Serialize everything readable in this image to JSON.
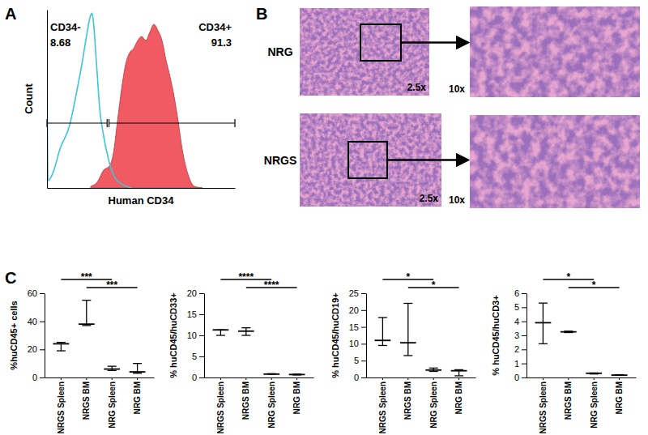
{
  "chart_data": [
    {
      "panel": "A",
      "type": "line",
      "xlabel": "Human CD34",
      "ylabel": "Count",
      "xlim": [
        0,
        100
      ],
      "ylim": [
        0,
        100
      ],
      "tick_labels": false,
      "series": [
        {
          "type": "line",
          "color": "#3ec6d8",
          "x": [
            0,
            0.6,
            3,
            7,
            12,
            16,
            19,
            21,
            23,
            24,
            25,
            26,
            27,
            28,
            30,
            33,
            36,
            40,
            45
          ],
          "values": [
            70,
            4,
            8,
            22,
            35,
            55,
            72,
            85,
            96,
            98,
            90,
            75,
            60,
            45,
            30,
            15,
            6,
            2,
            0
          ]
        },
        {
          "type": "area",
          "color": "#ef5a63",
          "x": [
            23.3,
            26.7,
            30.2,
            33.2,
            35.3,
            37.5,
            39.7,
            41.8,
            44,
            46.1,
            48.3,
            50.4,
            52.6,
            54.7,
            56.9,
            59.1,
            61.2,
            63.4,
            65.5,
            67.7,
            69.8,
            72,
            75,
            78.4,
            82.8
          ],
          "values": [
            0.9,
            3.2,
            10,
            12.3,
            19.1,
            37.3,
            55.5,
            69.1,
            75.9,
            78.2,
            82.7,
            85,
            82.7,
            87.3,
            91.8,
            88.2,
            82.7,
            71.4,
            62.3,
            50.9,
            37.3,
            21.4,
            7.7,
            0.9,
            0
          ]
        }
      ],
      "gates": [
        {
          "name": "CD34-",
          "percent": 8.68,
          "x": [
            0,
            32
          ]
        },
        {
          "name": "CD34+",
          "percent": 91.3,
          "x": [
            33,
            100
          ]
        }
      ]
    },
    {
      "panel": "C",
      "type": "range",
      "ylabel": "%huCD45+ cells",
      "categories": [
        "NRGS Spleen",
        "NRGS BM",
        "NRG Spleen",
        "NRG BM"
      ],
      "min": [
        19,
        37,
        5,
        3
      ],
      "median": [
        24,
        38,
        6,
        4
      ],
      "max": [
        25,
        55,
        8,
        10
      ],
      "ylim": [
        0,
        60
      ],
      "yticks": [
        0,
        20,
        40,
        60
      ],
      "significance": [
        {
          "pair": [
            "NRGS Spleen",
            "NRG Spleen"
          ],
          "label": "***"
        },
        {
          "pair": [
            "NRGS BM",
            "NRG BM"
          ],
          "label": "***"
        }
      ]
    },
    {
      "type": "range",
      "ylabel": "% huCD45/huCD33+",
      "categories": [
        "NRGS Spleen",
        "NRGS BM",
        "NRG Spleen",
        "NRG BM"
      ],
      "min": [
        10,
        10,
        0.8,
        0.6
      ],
      "median": [
        11.3,
        11,
        0.8,
        0.7
      ],
      "max": [
        11.3,
        11.8,
        0.9,
        0.8
      ],
      "ylim": [
        0,
        20
      ],
      "yticks": [
        0,
        5,
        10,
        15,
        20
      ],
      "significance": [
        {
          "pair": [
            "NRGS Spleen",
            "NRG Spleen"
          ],
          "label": "****"
        },
        {
          "pair": [
            "NRGS BM",
            "NRG BM"
          ],
          "label": "****"
        }
      ]
    },
    {
      "type": "range",
      "ylabel": "% huCD45/huCD19+",
      "categories": [
        "NRGS Spleen",
        "NRGS BM",
        "NRG Spleen",
        "NRG BM"
      ],
      "min": [
        9.5,
        6.5,
        1.8,
        0.5
      ],
      "median": [
        11,
        10.3,
        2.2,
        2
      ],
      "max": [
        17.8,
        22,
        2.8,
        2.3
      ],
      "ylim": [
        0,
        25
      ],
      "yticks": [
        0,
        5,
        10,
        15,
        20,
        25
      ],
      "significance": [
        {
          "pair": [
            "NRGS Spleen",
            "NRG Spleen"
          ],
          "label": "*"
        },
        {
          "pair": [
            "NRGS BM",
            "NRG BM"
          ],
          "label": "*"
        }
      ]
    },
    {
      "type": "range",
      "ylabel": "% huCD45/huCD3+",
      "categories": [
        "NRGS Spleen",
        "NRGS BM",
        "NRG Spleen",
        "NRG BM"
      ],
      "min": [
        2.4,
        3.2,
        0.25,
        0.15
      ],
      "median": [
        3.9,
        3.25,
        0.3,
        0.17
      ],
      "max": [
        5.3,
        3.3,
        0.32,
        0.2
      ],
      "ylim": [
        0,
        6
      ],
      "yticks": [
        0,
        1,
        2,
        3,
        4,
        5,
        6
      ],
      "significance": [
        {
          "pair": [
            "NRGS Spleen",
            "NRG Spleen"
          ],
          "label": "*"
        },
        {
          "pair": [
            "NRGS BM",
            "NRG BM"
          ],
          "label": "*"
        }
      ]
    }
  ],
  "histology": {
    "panel": "B",
    "rows": [
      "NRG",
      "NRGS"
    ],
    "magnifications": [
      "2.5x",
      "10x"
    ]
  }
}
